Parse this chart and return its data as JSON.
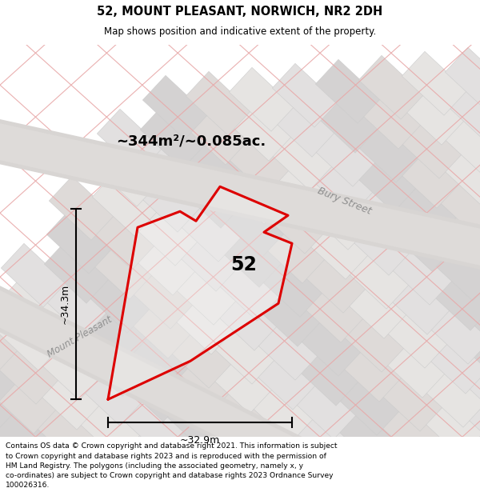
{
  "title_line1": "52, MOUNT PLEASANT, NORWICH, NR2 2DH",
  "title_line2": "Map shows position and indicative extent of the property.",
  "footer_lines": [
    "Contains OS data © Crown copyright and database right 2021. This information is subject",
    "to Crown copyright and database rights 2023 and is reproduced with the permission of",
    "HM Land Registry. The polygons (including the associated geometry, namely x, y",
    "co-ordinates) are subject to Crown copyright and database rights 2023 Ordnance Survey",
    "100026316."
  ],
  "area_label": "~344m²/~0.085ac.",
  "width_label": "~32.9m",
  "height_label": "~34.3m",
  "number_label": "52",
  "bg_color": "#ececec",
  "plot_color": "#dd0000",
  "street_label_bury": "Bury Street",
  "street_label_mount": "Mount Pleasant",
  "pink_line": "#e8a8a8",
  "gray_line": "#c8c8c8",
  "block_fill": "#e2e0e0",
  "block_edge": "#cccccc",
  "block_dark": "#d4d2d2",
  "road_fill": "#d8d5d5"
}
